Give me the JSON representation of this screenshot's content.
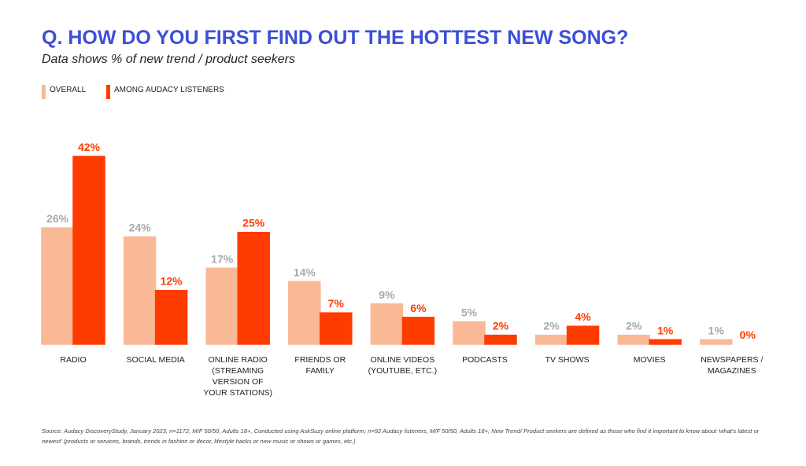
{
  "chart_data": {
    "type": "bar",
    "title": "Q. HOW DO YOU FIRST FIND OUT THE HOTTEST NEW SONG?",
    "subtitle": "Data shows % of new trend / product seekers",
    "categories": [
      "RADIO",
      "SOCIAL MEDIA",
      "ONLINE RADIO (STREAMING VERSION OF YOUR STATIONS)",
      "FRIENDS OR FAMILY",
      "ONLINE VIDEOS (YOUTUBE, ETC.)",
      "PODCASTS",
      "TV SHOWS",
      "MOVIES",
      "NEWSPAPERS / MAGAZINES"
    ],
    "series": [
      {
        "name": "OVERALL",
        "color": "#f9b997",
        "label_color": "#a9a9a9",
        "values": [
          26,
          24,
          17,
          14,
          9,
          5,
          2,
          2,
          1
        ],
        "value_labels": [
          "26%",
          "24%",
          "17%",
          "14%",
          "9%",
          "5%",
          "2%",
          "2%",
          "1%"
        ]
      },
      {
        "name": "AMONG AUDACY LISTENERS",
        "color": "#ff3c00",
        "label_color": "#ff3c00",
        "values": [
          42,
          12,
          25,
          7,
          6,
          2,
          4,
          1,
          0
        ],
        "value_labels": [
          "42%",
          "12%",
          "25%",
          "7%",
          "6%",
          "2%",
          "4%",
          "1%",
          "0%"
        ]
      }
    ],
    "source": "Source: Audacy DiscoveryStudy, January 2023, n=1172, M/F 50/50, Adults 18+, Conducted using AskSuzy online platform; n=92 Audacy listeners, M/F 50/50, Adults 18+; New Trend/ Product seekers are defined as those who find it important to know about 'what's latest or newest' (products or services, brands, trends in fashion or decor, lifestyle hacks or new music or shows or games, etc.)"
  }
}
